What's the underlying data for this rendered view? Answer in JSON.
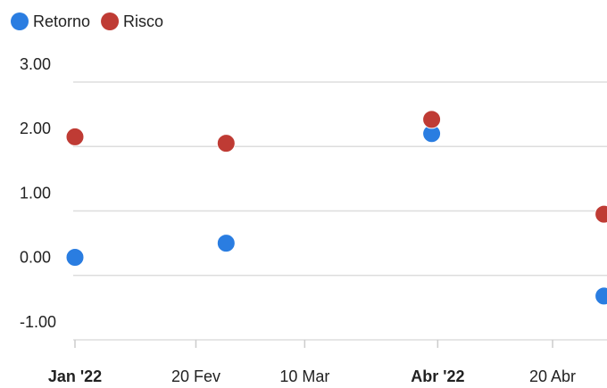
{
  "chart_data": {
    "type": "scatter",
    "series": [
      {
        "name": "Retorno",
        "color": "#2a7de1",
        "x": [
          0,
          25,
          59,
          87.5
        ],
        "values": [
          0.28,
          0.5,
          2.2,
          -0.32
        ]
      },
      {
        "name": "Risco",
        "color": "#bf3b34",
        "x": [
          0,
          25,
          59,
          87.5
        ],
        "values": [
          2.15,
          2.05,
          2.42,
          0.95
        ]
      }
    ],
    "xlim": [
      0,
      88
    ],
    "xticks": [
      {
        "value": 0,
        "label": "Jan '22",
        "bold": true
      },
      {
        "value": 20,
        "label": "20 Fev"
      },
      {
        "value": 38,
        "label": "10 Mar"
      },
      {
        "value": 60,
        "label": "Abr '22",
        "bold": true
      },
      {
        "value": 79,
        "label": "20 Abr"
      }
    ],
    "ylim": [
      -1,
      3
    ],
    "yticks": [
      {
        "value": 3,
        "label": "3.00"
      },
      {
        "value": 2,
        "label": "2.00"
      },
      {
        "value": 1,
        "label": "1.00"
      },
      {
        "value": 0,
        "label": "0.00"
      },
      {
        "value": -1,
        "label": "-1.00"
      }
    ],
    "grid": true,
    "legend": "top-left"
  }
}
